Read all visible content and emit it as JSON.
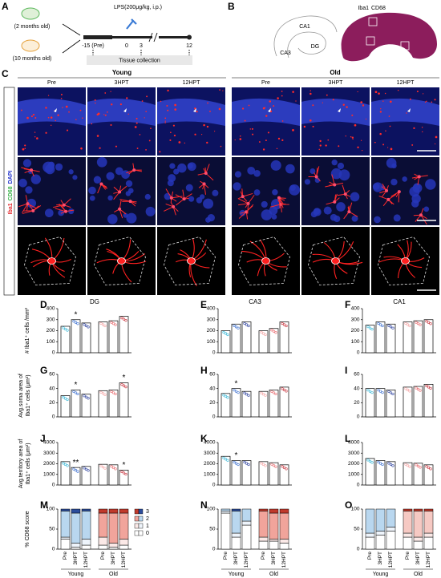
{
  "figure": {
    "A": {
      "letter": "A",
      "ages": [
        "(2 months old)",
        "(10 months old)"
      ],
      "treatment": "LPS(200μg/kg, i.p.)",
      "timepoints": [
        "-15 (Pre)",
        "0",
        "3",
        "12"
      ],
      "collection": "Tissue collection"
    },
    "B": {
      "letter": "B",
      "stains": [
        "Iba1",
        "CD68"
      ],
      "regions": [
        "CA1",
        "CA3",
        "DG"
      ]
    },
    "C": {
      "letter": "C",
      "groups": [
        "Young",
        "Old"
      ],
      "columns": [
        "Pre",
        "3HPT",
        "12HPT",
        "Pre",
        "3HPT",
        "12HPT"
      ],
      "stains": [
        "Iba1",
        "CD68",
        "DAPI"
      ]
    }
  },
  "chart_data": [
    {
      "type": "bar",
      "letter": "D",
      "title": "DG",
      "ylabel": [
        "# Iba1⁺ cells /mm²"
      ],
      "values": [
        240,
        300,
        270,
        280,
        290,
        330
      ],
      "ylim": [
        0,
        400
      ],
      "yticks": [
        0,
        100,
        200,
        300,
        400
      ],
      "annotations": [
        {
          "bar": 1,
          "text": "*"
        }
      ]
    },
    {
      "type": "bar",
      "letter": "E",
      "title": "CA3",
      "values": [
        200,
        260,
        280,
        200,
        220,
        280
      ],
      "ylim": [
        0,
        400
      ],
      "yticks": [
        0,
        100,
        200,
        300,
        400
      ]
    },
    {
      "type": "bar",
      "letter": "F",
      "title": "CA1",
      "values": [
        250,
        280,
        260,
        280,
        290,
        300
      ],
      "ylim": [
        0,
        400
      ],
      "yticks": [
        0,
        100,
        200,
        300,
        400
      ]
    },
    {
      "type": "bar",
      "letter": "G",
      "ylabel": [
        "Avg.soma area of",
        "Iba1⁺ cells (μm²)"
      ],
      "values": [
        30,
        38,
        32,
        37,
        38,
        48
      ],
      "ylim": [
        0,
        60
      ],
      "yticks": [
        0,
        20,
        40,
        60
      ],
      "annotations": [
        {
          "bar": 1,
          "text": "*"
        },
        {
          "bar": 5,
          "text": "*"
        }
      ]
    },
    {
      "type": "bar",
      "letter": "H",
      "values": [
        33,
        40,
        36,
        36,
        38,
        42
      ],
      "ylim": [
        0,
        60
      ],
      "yticks": [
        0,
        20,
        40,
        60
      ],
      "annotations": [
        {
          "bar": 1,
          "text": "*"
        }
      ]
    },
    {
      "type": "bar",
      "letter": "I",
      "values": [
        40,
        40,
        38,
        42,
        43,
        46
      ],
      "ylim": [
        0,
        60
      ],
      "yticks": [
        0,
        20,
        40,
        60
      ]
    },
    {
      "type": "bar",
      "letter": "J",
      "ylabel": [
        "Avg.territory area of",
        "Iba1⁺ cells (μm²)"
      ],
      "values": [
        2200,
        1650,
        1750,
        1950,
        1900,
        1400
      ],
      "ylim": [
        0,
        4000
      ],
      "yticks": [
        0,
        1000,
        2000,
        3000,
        4000
      ],
      "annotations": [
        {
          "bar": 1,
          "text": "**"
        },
        {
          "bar": 5,
          "text": "*"
        }
      ]
    },
    {
      "type": "bar",
      "letter": "K",
      "values": [
        2700,
        2300,
        2300,
        2200,
        2100,
        1900
      ],
      "ylim": [
        0,
        4000
      ],
      "yticks": [
        0,
        1000,
        2000,
        3000,
        4000
      ],
      "annotations": [
        {
          "bar": 1,
          "text": "*"
        }
      ]
    },
    {
      "type": "bar",
      "letter": "L",
      "values": [
        2500,
        2300,
        2200,
        2100,
        2050,
        1900
      ],
      "ylim": [
        0,
        4000
      ],
      "yticks": [
        0,
        1000,
        2000,
        3000,
        4000
      ]
    },
    {
      "type": "stacked_bar",
      "letter": "M",
      "ylabel": [
        "% CD68 score"
      ],
      "categories": [
        "Pre",
        "3HPT",
        "12HPT",
        "Pre",
        "3HPT",
        "12HPT"
      ],
      "groups": [
        "Young",
        "Old"
      ],
      "ylim": [
        0,
        100
      ],
      "yticks": [
        0,
        50,
        100
      ],
      "legend": true,
      "series": [
        {
          "name": "0",
          "colors": [
            "#ffffff",
            "#ffffff",
            "#ffffff",
            "#ffffff",
            "#ffffff",
            "#ffffff"
          ],
          "values": [
            25,
            5,
            10,
            10,
            5,
            10
          ]
        },
        {
          "name": "1",
          "colors": [
            "#eef4fb",
            "#eef4fb",
            "#eef4fb",
            "#fbe9e7",
            "#fbe9e7",
            "#fbe9e7"
          ],
          "values": [
            5,
            10,
            15,
            20,
            10,
            15
          ]
        },
        {
          "name": "2",
          "colors": [
            "#b9d7ef",
            "#b9d7ef",
            "#b9d7ef",
            "#f1a49b",
            "#f1a49b",
            "#f1a49b"
          ],
          "values": [
            65,
            75,
            70,
            60,
            75,
            65
          ]
        },
        {
          "name": "3",
          "colors": [
            "#2b4c9b",
            "#2b4c9b",
            "#2b4c9b",
            "#c0392b",
            "#c0392b",
            "#c0392b"
          ],
          "values": [
            5,
            10,
            5,
            10,
            10,
            10
          ]
        }
      ]
    },
    {
      "type": "stacked_bar",
      "categories": [
        "Pre",
        "3HPT",
        "12HPT",
        "Pre",
        "3HPT",
        "12HPT"
      ],
      "letter": "N",
      "groups": [
        "Young",
        "Old"
      ],
      "ylim": [
        0,
        100
      ],
      "yticks": [
        0,
        50,
        100
      ],
      "legend": false,
      "series": [
        {
          "colors": [
            "#ffffff",
            "#ffffff",
            "#ffffff",
            "#ffffff",
            "#ffffff",
            "#ffffff"
          ],
          "values": [
            90,
            30,
            60,
            20,
            20,
            15
          ]
        },
        {
          "colors": [
            "#eef4fb",
            "#eef4fb",
            "#eef4fb",
            "#fbe9e7",
            "#fbe9e7",
            "#fbe9e7"
          ],
          "values": [
            5,
            10,
            10,
            10,
            5,
            10
          ]
        },
        {
          "colors": [
            "#b9d7ef",
            "#b9d7ef",
            "#b9d7ef",
            "#f1a49b",
            "#f1a49b",
            "#f1a49b"
          ],
          "values": [
            5,
            55,
            30,
            65,
            65,
            65
          ]
        },
        {
          "colors": [
            "#2b4c9b",
            "#2b4c9b",
            "#2b4c9b",
            "#c0392b",
            "#c0392b",
            "#c0392b"
          ],
          "values": [
            0,
            5,
            0,
            5,
            10,
            10
          ]
        }
      ]
    },
    {
      "type": "stacked_bar",
      "categories": [
        "Pre",
        "3HPT",
        "12HPT",
        "Pre",
        "3HPT",
        "12HPT"
      ],
      "letter": "O",
      "groups": [
        "Young",
        "Old"
      ],
      "ylim": [
        0,
        100
      ],
      "yticks": [
        0,
        50,
        100
      ],
      "legend": false,
      "series": [
        {
          "colors": [
            "#ffffff",
            "#ffffff",
            "#ffffff",
            "#ffffff",
            "#ffffff",
            "#ffffff"
          ],
          "values": [
            30,
            35,
            45,
            30,
            20,
            30
          ]
        },
        {
          "colors": [
            "#eef4fb",
            "#eef4fb",
            "#eef4fb",
            "#fbe9e7",
            "#fbe9e7",
            "#fbe9e7"
          ],
          "values": [
            10,
            10,
            10,
            10,
            10,
            10
          ]
        },
        {
          "colors": [
            "#b9d7ef",
            "#b9d7ef",
            "#b9d7ef",
            "#f6c9c3",
            "#f6c9c3",
            "#f6c9c3"
          ],
          "values": [
            60,
            55,
            45,
            55,
            65,
            55
          ]
        },
        {
          "colors": [
            "#2b4c9b",
            "#2b4c9b",
            "#2b4c9b",
            "#c0392b",
            "#c0392b",
            "#c0392b"
          ],
          "values": [
            0,
            0,
            0,
            5,
            5,
            5
          ]
        }
      ]
    }
  ]
}
